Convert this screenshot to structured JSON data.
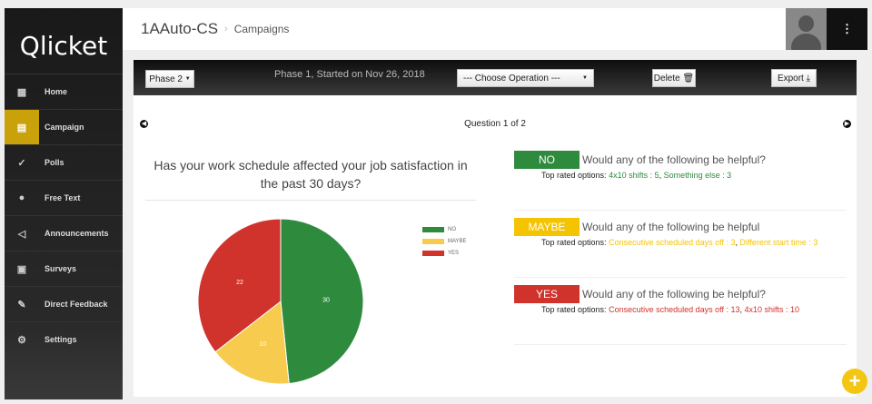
{
  "app": {
    "logo": "Qlicket"
  },
  "sidebar": {
    "items": [
      {
        "label": "Home",
        "icon": "calendar-icon",
        "glyph": "▦"
      },
      {
        "label": "Campaign",
        "icon": "campaign-icon",
        "glyph": "▤",
        "active": true
      },
      {
        "label": "Polls",
        "icon": "check-circle-icon",
        "glyph": "✓"
      },
      {
        "label": "Free Text",
        "icon": "chat-icon",
        "glyph": "●"
      },
      {
        "label": "Announcements",
        "icon": "megaphone-icon",
        "glyph": "◁"
      },
      {
        "label": "Surveys",
        "icon": "clipboard-icon",
        "glyph": "▣"
      },
      {
        "label": "Direct Feedback",
        "icon": "feedback-icon",
        "glyph": "✎"
      },
      {
        "label": "Settings",
        "icon": "gear-icon",
        "glyph": "⚙"
      }
    ]
  },
  "header": {
    "org": "1AAuto-CS",
    "separator": "›",
    "page": "Campaigns",
    "menu_glyph": "⋮"
  },
  "toolbar": {
    "phase": "Phase 2",
    "phase_info": "Phase 1, Started on Nov 26, 2018",
    "operation": "--- Choose Operation ---",
    "delete": "Delete",
    "export": "Export"
  },
  "question": {
    "counter": "Question 1 of 2",
    "title": "Has your work schedule affected your job satisfaction in the past 30 days?"
  },
  "chart_data": {
    "type": "pie",
    "categories": [
      "NO",
      "MAYBE",
      "YES"
    ],
    "values": [
      30,
      10,
      22
    ],
    "colors": [
      "#2e8b3e",
      "#f7cb4d",
      "#d0332c"
    ],
    "legend": "right"
  },
  "responses": [
    {
      "badge": "NO",
      "color": "#2e8b3e",
      "question": "Would any of the following be helpful?",
      "top_label": "Top rated options:",
      "options": [
        {
          "text": "4x10 shifts : 5"
        },
        {
          "text": "Something else : 3"
        }
      ]
    },
    {
      "badge": "MAYBE",
      "color": "#f5c400",
      "question": "Would any of the following be helpful",
      "top_label": "Top rated options:",
      "options": [
        {
          "text": "Consecutive scheduled days off : 3"
        },
        {
          "text": "Different start time : 3"
        }
      ]
    },
    {
      "badge": "YES",
      "color": "#d0332c",
      "question": "Would any of the following be helpful?",
      "top_label": "Top rated options:",
      "options": [
        {
          "text": "Consecutive scheduled days off : 13"
        },
        {
          "text": "4x10 shifts : 10"
        }
      ]
    }
  ],
  "fab": "+"
}
